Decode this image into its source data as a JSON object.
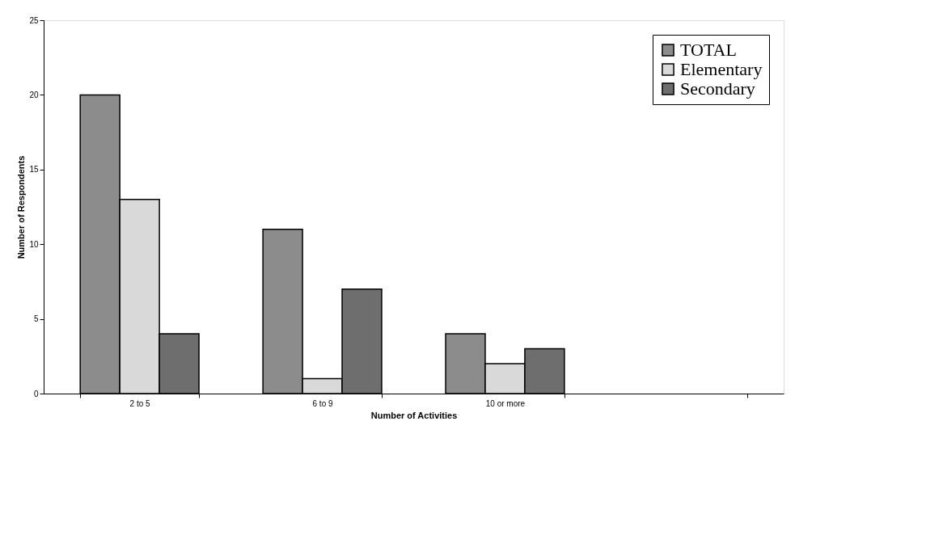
{
  "chart_data": {
    "type": "bar",
    "xlabel": "Number of Activities",
    "ylabel": "Number of Respondents",
    "categories": [
      "2 to 5",
      "6 to 9",
      "10 or more",
      null
    ],
    "series": [
      {
        "name": "TOTAL",
        "color": "#8c8c8c",
        "values": [
          20,
          11,
          4,
          null
        ]
      },
      {
        "name": "Elementary",
        "color": "#d9d9d9",
        "values": [
          13,
          1,
          2,
          null
        ]
      },
      {
        "name": "Secondary",
        "color": "#6e6e6e",
        "values": [
          4,
          7,
          3,
          null
        ]
      }
    ],
    "ylim": [
      0,
      25
    ],
    "yticks": [
      0,
      5,
      10,
      15,
      20,
      25
    ],
    "grid": false,
    "legend": "top right"
  }
}
